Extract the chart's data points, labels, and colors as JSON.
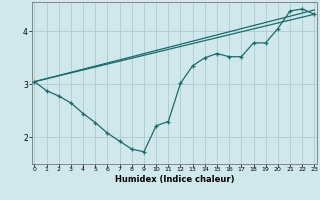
{
  "xlabel": "Humidex (Indice chaleur)",
  "bg_color": "#d0e8ec",
  "grid_color": "#b0d0d5",
  "line_color": "#1a6b6b",
  "x_min": 0,
  "x_max": 23,
  "y_min": 1.5,
  "y_max": 4.55,
  "yticks": [
    2,
    3,
    4
  ],
  "xticks": [
    0,
    1,
    2,
    3,
    4,
    5,
    6,
    7,
    8,
    9,
    10,
    11,
    12,
    13,
    14,
    15,
    16,
    17,
    18,
    19,
    20,
    21,
    22,
    23
  ],
  "line1_x": [
    0,
    1,
    2,
    3,
    4,
    5,
    6,
    7,
    8,
    9,
    10,
    11,
    12,
    13,
    14,
    15,
    16,
    17,
    18,
    19,
    20,
    21,
    22,
    23
  ],
  "line1_y": [
    3.05,
    2.88,
    2.78,
    2.65,
    2.45,
    2.28,
    2.08,
    1.93,
    1.78,
    1.73,
    2.22,
    2.3,
    3.02,
    3.35,
    3.5,
    3.58,
    3.52,
    3.52,
    3.78,
    3.78,
    4.05,
    4.38,
    4.42,
    4.32
  ],
  "line2_x": [
    0,
    23
  ],
  "line2_y": [
    3.05,
    4.32
  ],
  "line3_x": [
    0,
    23
  ],
  "line3_y": [
    3.05,
    4.4
  ]
}
